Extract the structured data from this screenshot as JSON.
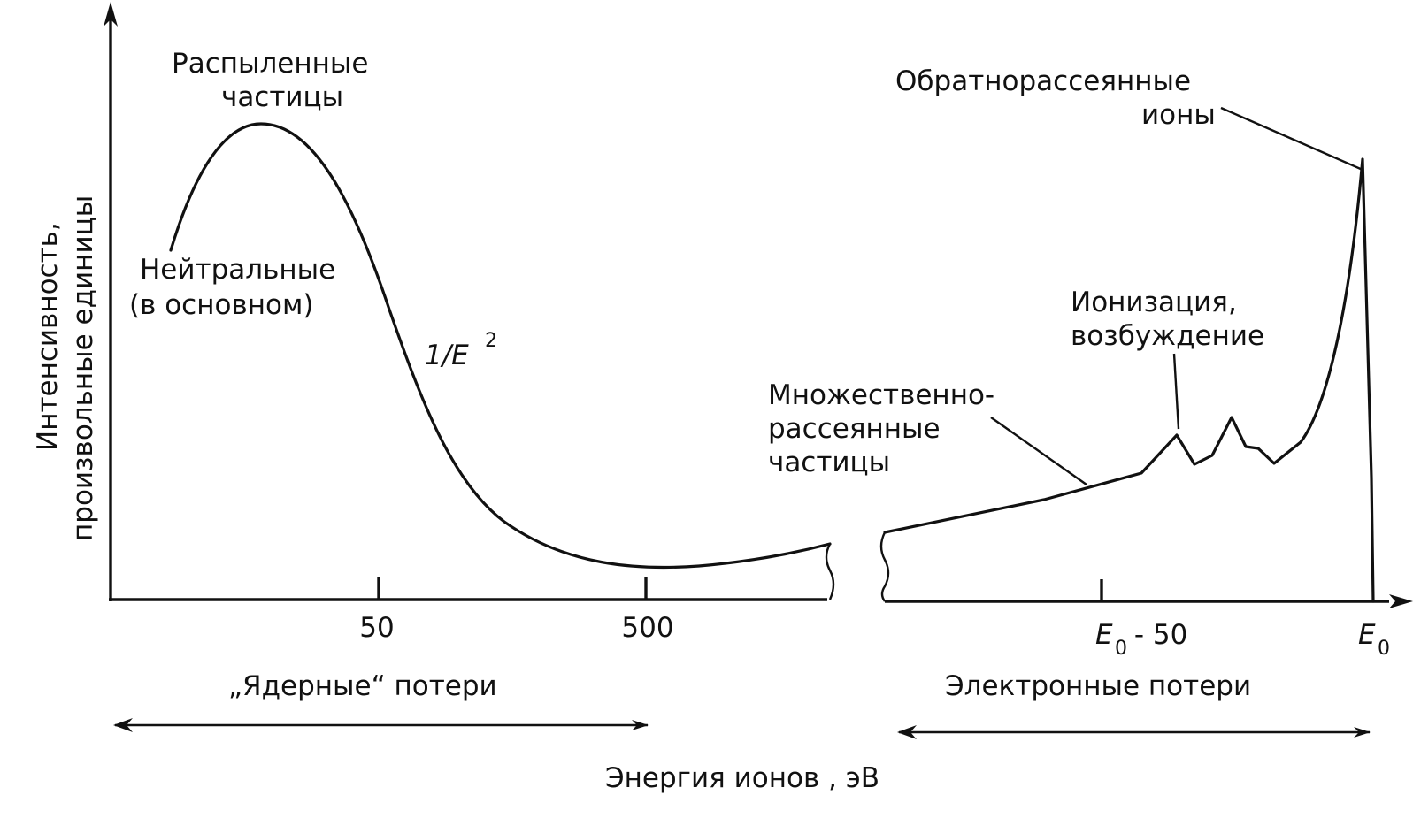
{
  "chart_data": {
    "type": "line",
    "ylabel_lines": [
      "Интенсивность,",
      "произвольные единицы"
    ],
    "xlabel": "Энергия ионов , эВ",
    "x_ticks": [
      {
        "label": "50"
      },
      {
        "label": "500"
      },
      {
        "label": "E",
        "sub": "0",
        "suffix": " - 50"
      },
      {
        "label": "E",
        "sub": "0",
        "suffix": ""
      }
    ],
    "regions": [
      {
        "name": "nuclear",
        "label": "„Ядерные“ потери"
      },
      {
        "name": "electronic",
        "label": "Электронные потери"
      }
    ],
    "annotations": {
      "sputtered": [
        "Распыленные",
        "частицы"
      ],
      "neutral": [
        "Нейтральные",
        "(в основном)"
      ],
      "inverse_e2": {
        "text": "1/E",
        "sup": "2"
      },
      "backscattered": [
        "Обратнорассеянные",
        "ионы"
      ],
      "ionization": [
        "Ионизация,",
        "возбуждение"
      ],
      "multiple": [
        "Множественно-",
        "рассеянные",
        "частицы"
      ]
    },
    "series": [
      {
        "id": "sputtered-curve"
      },
      {
        "id": "scattered-curve"
      }
    ]
  }
}
